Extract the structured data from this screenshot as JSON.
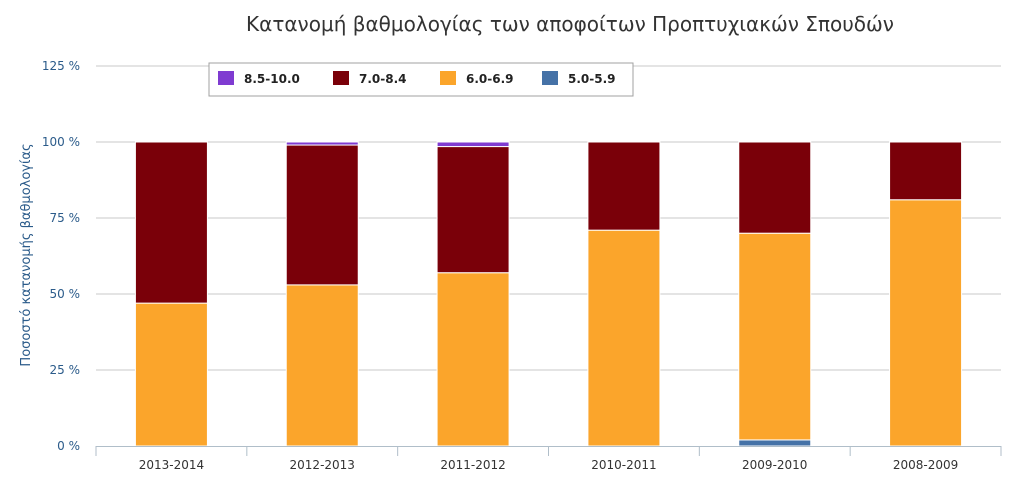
{
  "chart_data": {
    "type": "bar",
    "stacked": true,
    "title": "Κατανομή βαθμολογίας των αποφοίτων Προπτυχιακών Σπουδών",
    "xlabel": "",
    "ylabel": "Ποσοστό κατανομής βαθμολογίας",
    "ylim": [
      0,
      125
    ],
    "yticks": [
      {
        "value": 0,
        "label": "0 %"
      },
      {
        "value": 25,
        "label": "25 %"
      },
      {
        "value": 50,
        "label": "50 %"
      },
      {
        "value": 75,
        "label": "75 %"
      },
      {
        "value": 100,
        "label": "100 %"
      },
      {
        "value": 125,
        "label": "125 %"
      }
    ],
    "grid": true,
    "legend_position": "top-left",
    "categories": [
      "2013-2014",
      "2012-2013",
      "2011-2012",
      "2010-2011",
      "2009-2010",
      "2008-2009"
    ],
    "series": [
      {
        "name": "5.0-5.9",
        "color": "#4572a7",
        "values": [
          0,
          0,
          0,
          0,
          2,
          0
        ]
      },
      {
        "name": "6.0-6.9",
        "color": "#fba52b",
        "values": [
          47,
          53,
          57,
          71,
          68,
          81
        ]
      },
      {
        "name": "7.0-8.4",
        "color": "#7a0009",
        "values": [
          53,
          46,
          41.5,
          29,
          30,
          19
        ]
      },
      {
        "name": "8.5-10.0",
        "color": "#7f3bd1",
        "values": [
          0,
          1,
          1.5,
          0,
          0,
          0
        ]
      }
    ],
    "legend_order": [
      "8.5-10.0",
      "7.0-8.4",
      "6.0-6.9",
      "5.0-5.9"
    ]
  }
}
